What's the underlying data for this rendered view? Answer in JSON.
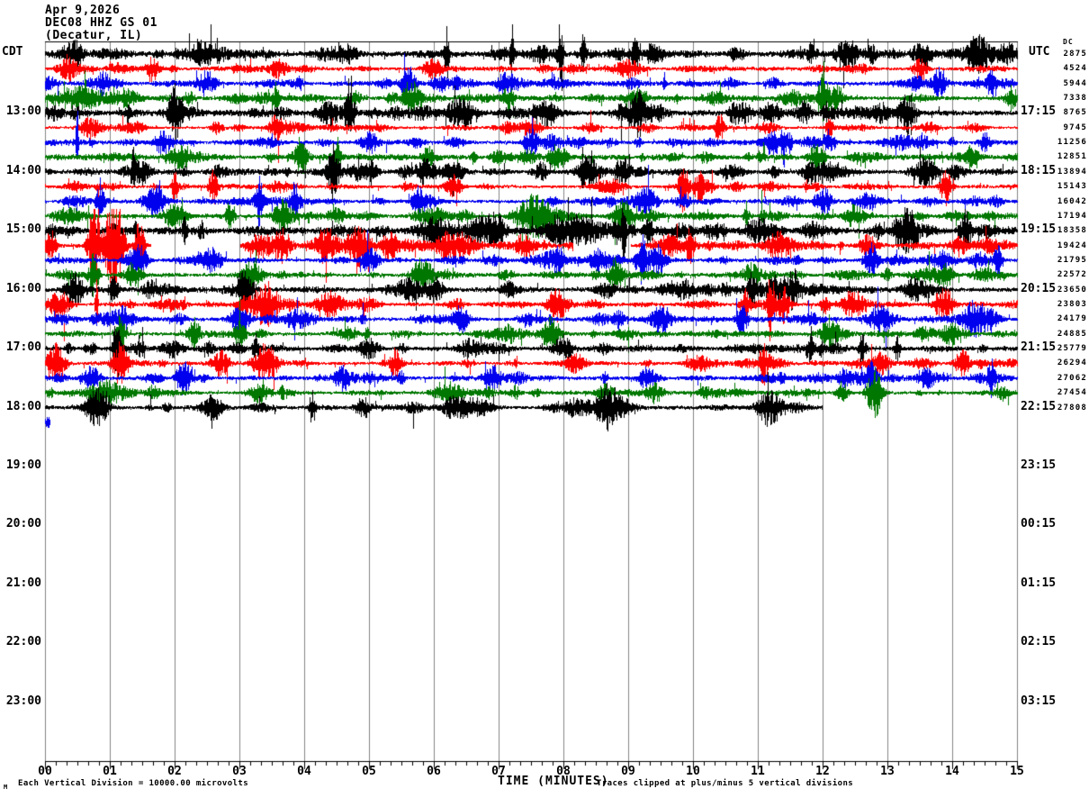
{
  "header": {
    "date": "Apr 9,2026",
    "station": "DEC08 HHZ GS 01",
    "location": "(Decatur, IL)"
  },
  "axes": {
    "left_title": "CDT",
    "right_title": "UTC",
    "right_subtitle": "DC",
    "x_title": "TIME (MINUTES)",
    "x_ticks": [
      "00",
      "01",
      "02",
      "03",
      "04",
      "05",
      "06",
      "07",
      "08",
      "09",
      "10",
      "11",
      "12",
      "13",
      "14",
      "15"
    ],
    "left_labels_empty_region": [
      {
        "text": "19:00",
        "vrow": 28
      },
      {
        "text": "20:00",
        "vrow": 32
      },
      {
        "text": "21:00",
        "vrow": 36
      },
      {
        "text": "22:00",
        "vrow": 40
      },
      {
        "text": "23:00",
        "vrow": 44
      }
    ],
    "right_labels_empty_region": [
      {
        "text": "23:15",
        "vrow": 28
      },
      {
        "text": "00:15",
        "vrow": 32
      },
      {
        "text": "01:15",
        "vrow": 36
      },
      {
        "text": "02:15",
        "vrow": 40
      },
      {
        "text": "03:15",
        "vrow": 44
      }
    ]
  },
  "footer": {
    "scale_note": "Each Vertical Division = 10000.00 microvolts",
    "clip_note": "Traces clipped at plus/minus 5 vertical divisions",
    "corner_glyph": "M"
  },
  "colors": {
    "black": "#000000",
    "red": "#ff0000",
    "blue": "#0000ee",
    "green": "#007700",
    "grid": "#858585",
    "axis": "#000000"
  },
  "chart_data": {
    "type": "seismogram",
    "x_range_minutes": [
      0,
      15
    ],
    "minutes_per_row": 15,
    "vertical_division_microvolts": 10000.0,
    "clip_divisions": 5,
    "rows": [
      {
        "color": "black",
        "cdt": "",
        "utc": "",
        "offset": "2875",
        "base": 4.2,
        "gaps": [],
        "events": [
          [
            0.4,
            10,
            0.1
          ],
          [
            2.5,
            10,
            0.2
          ],
          [
            6.2,
            26,
            0.025
          ],
          [
            7.2,
            24,
            0.025
          ],
          [
            7.95,
            30,
            0.03
          ],
          [
            8.3,
            18,
            0.025
          ],
          [
            9.1,
            20,
            0.03
          ],
          [
            12.35,
            12,
            0.1
          ],
          [
            14.4,
            16,
            0.15
          ]
        ]
      },
      {
        "color": "red",
        "cdt": "",
        "utc": "",
        "offset": "4524",
        "base": 2.4,
        "gaps": [],
        "events": [
          [
            0.35,
            12,
            0.08
          ],
          [
            1.65,
            12,
            0.06
          ],
          [
            3.6,
            8,
            0.1
          ],
          [
            6.0,
            9,
            0.1
          ],
          [
            9.0,
            8,
            0.15
          ],
          [
            13.5,
            9,
            0.08
          ]
        ]
      },
      {
        "color": "blue",
        "cdt": "",
        "utc": "",
        "offset": "5944",
        "base": 3.0,
        "gaps": [],
        "events": [
          [
            0.9,
            12,
            0.06
          ],
          [
            2.5,
            10,
            0.1
          ],
          [
            5.6,
            16,
            0.08
          ],
          [
            7.1,
            10,
            0.1
          ],
          [
            13.8,
            14,
            0.08
          ],
          [
            14.6,
            12,
            0.05
          ]
        ]
      },
      {
        "color": "green",
        "cdt": "",
        "utc": "",
        "offset": "7338",
        "base": 3.2,
        "gaps": [],
        "events": [
          [
            0.5,
            10,
            0.3
          ],
          [
            5.65,
            14,
            0.08
          ],
          [
            7.15,
            12,
            0.06
          ],
          [
            12.0,
            22,
            0.05
          ],
          [
            12.2,
            12,
            0.08
          ],
          [
            14.9,
            10,
            0.05
          ]
        ]
      },
      {
        "color": "black",
        "cdt": "13:00",
        "utc": "17:15",
        "offset": "8765",
        "base": 4.0,
        "gaps": [],
        "events": [
          [
            2.0,
            22,
            0.06
          ],
          [
            4.7,
            18,
            0.06
          ],
          [
            6.4,
            12,
            0.15
          ],
          [
            9.15,
            16,
            0.05
          ],
          [
            11.2,
            10,
            0.1
          ],
          [
            13.3,
            20,
            0.08
          ]
        ]
      },
      {
        "color": "red",
        "cdt": "",
        "utc": "",
        "offset": "9745",
        "base": 2.2,
        "gaps": [],
        "events": [
          [
            0.7,
            10,
            0.12
          ],
          [
            3.55,
            9,
            0.06
          ],
          [
            7.5,
            7,
            0.1
          ],
          [
            10.4,
            12,
            0.05
          ],
          [
            12.1,
            10,
            0.04
          ]
        ]
      },
      {
        "color": "blue",
        "cdt": "",
        "utc": "",
        "offset": "11256",
        "base": 2.8,
        "gaps": [],
        "events": [
          [
            0.49,
            38,
            0.012
          ],
          [
            1.8,
            10,
            0.1
          ],
          [
            5.0,
            10,
            0.1
          ],
          [
            7.5,
            12,
            0.08
          ],
          [
            11.2,
            12,
            0.1
          ],
          [
            14.5,
            10,
            0.06
          ]
        ]
      },
      {
        "color": "green",
        "cdt": "",
        "utc": "",
        "offset": "12851",
        "base": 3.0,
        "gaps": [],
        "events": [
          [
            2.1,
            10,
            0.15
          ],
          [
            3.95,
            15,
            0.08
          ],
          [
            4.5,
            18,
            0.04
          ],
          [
            7.9,
            12,
            0.1
          ],
          [
            11.9,
            12,
            0.08
          ],
          [
            14.3,
            10,
            0.06
          ]
        ]
      },
      {
        "color": "black",
        "cdt": "14:00",
        "utc": "18:15",
        "offset": "13894",
        "base": 3.6,
        "gaps": [],
        "events": [
          [
            1.36,
            14,
            0.02
          ],
          [
            4.45,
            26,
            0.06
          ],
          [
            6.3,
            10,
            0.1
          ],
          [
            8.9,
            14,
            0.08
          ],
          [
            13.6,
            10,
            0.1
          ]
        ]
      },
      {
        "color": "red",
        "cdt": "",
        "utc": "",
        "offset": "15143",
        "base": 2.4,
        "gaps": [],
        "events": [
          [
            2.0,
            16,
            0.03
          ],
          [
            2.6,
            14,
            0.05
          ],
          [
            6.3,
            10,
            0.08
          ],
          [
            9.85,
            26,
            0.05
          ],
          [
            10.1,
            14,
            0.08
          ],
          [
            13.9,
            18,
            0.06
          ]
        ]
      },
      {
        "color": "blue",
        "cdt": "",
        "utc": "",
        "offset": "16042",
        "base": 2.8,
        "gaps": [],
        "events": [
          [
            0.85,
            14,
            0.04
          ],
          [
            1.65,
            12,
            0.1
          ],
          [
            3.3,
            22,
            0.04
          ],
          [
            3.85,
            18,
            0.05
          ],
          [
            5.75,
            14,
            0.06
          ],
          [
            9.3,
            12,
            0.1
          ],
          [
            12.0,
            10,
            0.1
          ]
        ]
      },
      {
        "color": "green",
        "cdt": "",
        "utc": "",
        "offset": "17194",
        "base": 3.0,
        "gaps": [],
        "events": [
          [
            2.0,
            12,
            0.12
          ],
          [
            2.85,
            14,
            0.04
          ],
          [
            3.65,
            16,
            0.08
          ],
          [
            7.6,
            12,
            0.2
          ],
          [
            8.9,
            14,
            0.1
          ],
          [
            12.5,
            10,
            0.1
          ]
        ]
      },
      {
        "color": "black",
        "cdt": "15:00",
        "utc": "19:15",
        "offset": "18358",
        "base": 4.5,
        "gaps": [],
        "events": [
          [
            2.15,
            14,
            0.025
          ],
          [
            6.0,
            10,
            0.2
          ],
          [
            8.2,
            13,
            0.35
          ],
          [
            8.93,
            38,
            0.02
          ],
          [
            9.3,
            16,
            0.04
          ],
          [
            11.0,
            10,
            0.15
          ],
          [
            13.3,
            12,
            0.1
          ],
          [
            14.2,
            18,
            0.06
          ]
        ]
      },
      {
        "color": "red",
        "cdt": "",
        "utc": "",
        "offset": "19424",
        "base": 3.0,
        "gaps": [
          [
            1.63,
            3.0
          ],
          [
            8.15,
            9.03
          ]
        ],
        "events": [
          [
            0.1,
            10,
            0.05
          ],
          [
            0.75,
            45,
            0.06
          ],
          [
            1.05,
            45,
            0.1
          ],
          [
            1.45,
            28,
            0.05
          ],
          [
            3.3,
            10,
            0.1
          ],
          [
            3.65,
            14,
            0.1
          ],
          [
            4.3,
            12,
            0.1
          ],
          [
            4.85,
            20,
            0.12
          ],
          [
            5.3,
            12,
            0.08
          ],
          [
            6.3,
            10,
            0.2
          ],
          [
            7.4,
            12,
            0.1
          ],
          [
            9.6,
            10,
            0.1
          ],
          [
            9.95,
            14,
            0.06
          ],
          [
            11.3,
            10,
            0.15
          ],
          [
            12.7,
            10,
            0.1
          ],
          [
            14.1,
            9,
            0.1
          ]
        ]
      },
      {
        "color": "blue",
        "cdt": "",
        "utc": "",
        "offset": "21795",
        "base": 2.8,
        "gaps": [],
        "events": [
          [
            1.4,
            12,
            0.1
          ],
          [
            2.6,
            10,
            0.1
          ],
          [
            5.0,
            10,
            0.1
          ],
          [
            7.9,
            14,
            0.06
          ],
          [
            9.2,
            22,
            0.06
          ],
          [
            9.45,
            12,
            0.08
          ],
          [
            12.75,
            16,
            0.08
          ],
          [
            14.7,
            14,
            0.05
          ]
        ]
      },
      {
        "color": "green",
        "cdt": "",
        "utc": "",
        "offset": "22572",
        "base": 2.9,
        "gaps": [],
        "events": [
          [
            0.75,
            14,
            0.05
          ],
          [
            3.2,
            12,
            0.1
          ],
          [
            5.8,
            10,
            0.1
          ],
          [
            8.8,
            18,
            0.07
          ],
          [
            10.9,
            10,
            0.1
          ],
          [
            13.9,
            10,
            0.08
          ]
        ]
      },
      {
        "color": "black",
        "cdt": "16:00",
        "utc": "20:15",
        "offset": "23650",
        "base": 3.4,
        "gaps": [],
        "events": [
          [
            0.45,
            16,
            0.1
          ],
          [
            1.05,
            12,
            0.05
          ],
          [
            3.1,
            10,
            0.1
          ],
          [
            5.6,
            10,
            0.15
          ],
          [
            10.9,
            12,
            0.05
          ],
          [
            11.55,
            18,
            0.04
          ],
          [
            13.4,
            10,
            0.1
          ]
        ]
      },
      {
        "color": "red",
        "cdt": "",
        "utc": "",
        "offset": "23803",
        "base": 2.6,
        "gaps": [],
        "events": [
          [
            0.2,
            12,
            0.12
          ],
          [
            0.79,
            26,
            0.015
          ],
          [
            3.4,
            18,
            0.12
          ],
          [
            4.4,
            12,
            0.15
          ],
          [
            7.9,
            16,
            0.1
          ],
          [
            10.8,
            16,
            0.05
          ],
          [
            11.2,
            26,
            0.04
          ],
          [
            11.4,
            14,
            0.06
          ],
          [
            12.5,
            10,
            0.1
          ],
          [
            13.9,
            13,
            0.08
          ]
        ]
      },
      {
        "color": "blue",
        "cdt": "",
        "utc": "",
        "offset": "24179",
        "base": 2.9,
        "gaps": [],
        "events": [
          [
            1.2,
            10,
            0.1
          ],
          [
            3.0,
            12,
            0.1
          ],
          [
            6.4,
            14,
            0.08
          ],
          [
            9.5,
            12,
            0.1
          ],
          [
            10.75,
            14,
            0.06
          ],
          [
            12.9,
            12,
            0.15
          ],
          [
            14.3,
            11,
            0.1
          ]
        ]
      },
      {
        "color": "green",
        "cdt": "",
        "utc": "",
        "offset": "24885",
        "base": 3.0,
        "gaps": [],
        "events": [
          [
            1.15,
            20,
            0.05
          ],
          [
            2.3,
            12,
            0.06
          ],
          [
            3.0,
            14,
            0.06
          ],
          [
            7.8,
            16,
            0.1
          ],
          [
            12.1,
            12,
            0.08
          ],
          [
            14.0,
            10,
            0.1
          ]
        ]
      },
      {
        "color": "black",
        "cdt": "17:00",
        "utc": "21:15",
        "offset": "25779",
        "base": 3.2,
        "gaps": [],
        "events": [
          [
            1.1,
            30,
            0.04
          ],
          [
            3.25,
            14,
            0.04
          ],
          [
            5.0,
            10,
            0.1
          ],
          [
            8.0,
            10,
            0.1
          ],
          [
            11.8,
            11,
            0.04
          ],
          [
            12.6,
            15,
            0.03
          ],
          [
            13.15,
            13,
            0.03
          ]
        ]
      },
      {
        "color": "red",
        "cdt": "",
        "utc": "",
        "offset": "26294",
        "base": 2.5,
        "gaps": [],
        "events": [
          [
            0.15,
            14,
            0.1
          ],
          [
            1.15,
            20,
            0.08
          ],
          [
            3.4,
            20,
            0.12
          ],
          [
            5.4,
            14,
            0.06
          ],
          [
            8.2,
            10,
            0.1
          ],
          [
            11.07,
            17,
            0.03
          ],
          [
            12.9,
            10,
            0.1
          ],
          [
            14.15,
            12,
            0.08
          ]
        ]
      },
      {
        "color": "blue",
        "cdt": "",
        "utc": "",
        "offset": "27062",
        "base": 2.8,
        "gaps": [],
        "events": [
          [
            2.15,
            15,
            0.07
          ],
          [
            4.6,
            10,
            0.1
          ],
          [
            6.9,
            10,
            0.1
          ],
          [
            9.3,
            10,
            0.1
          ],
          [
            12.75,
            16,
            0.07
          ],
          [
            13.6,
            10,
            0.1
          ],
          [
            14.6,
            17,
            0.04
          ]
        ]
      },
      {
        "color": "green",
        "cdt": "",
        "utc": "",
        "offset": "27454",
        "base": 2.6,
        "gaps": [],
        "events": [
          [
            0.9,
            10,
            0.2
          ],
          [
            3.3,
            8,
            0.1
          ],
          [
            6.2,
            9,
            0.15
          ],
          [
            9.4,
            9,
            0.1
          ],
          [
            12.3,
            11,
            0.06
          ],
          [
            12.8,
            24,
            0.08
          ]
        ]
      },
      {
        "color": "black",
        "cdt": "18:00",
        "utc": "22:15",
        "offset": "27808",
        "base": 3.0,
        "gaps": [
          [
            11.99,
            15
          ]
        ],
        "events": [
          [
            0.8,
            10,
            0.1
          ],
          [
            2.6,
            9,
            0.1
          ],
          [
            4.12,
            18,
            0.03
          ],
          [
            4.9,
            10,
            0.08
          ],
          [
            6.5,
            9,
            0.2
          ],
          [
            8.6,
            10,
            0.1
          ],
          [
            11.15,
            13,
            0.12
          ]
        ]
      },
      {
        "color": "blue",
        "cdt": "",
        "utc": "",
        "offset": "",
        "base": 3.0,
        "gaps": [
          [
            0.07,
            15
          ]
        ],
        "events": []
      }
    ]
  }
}
